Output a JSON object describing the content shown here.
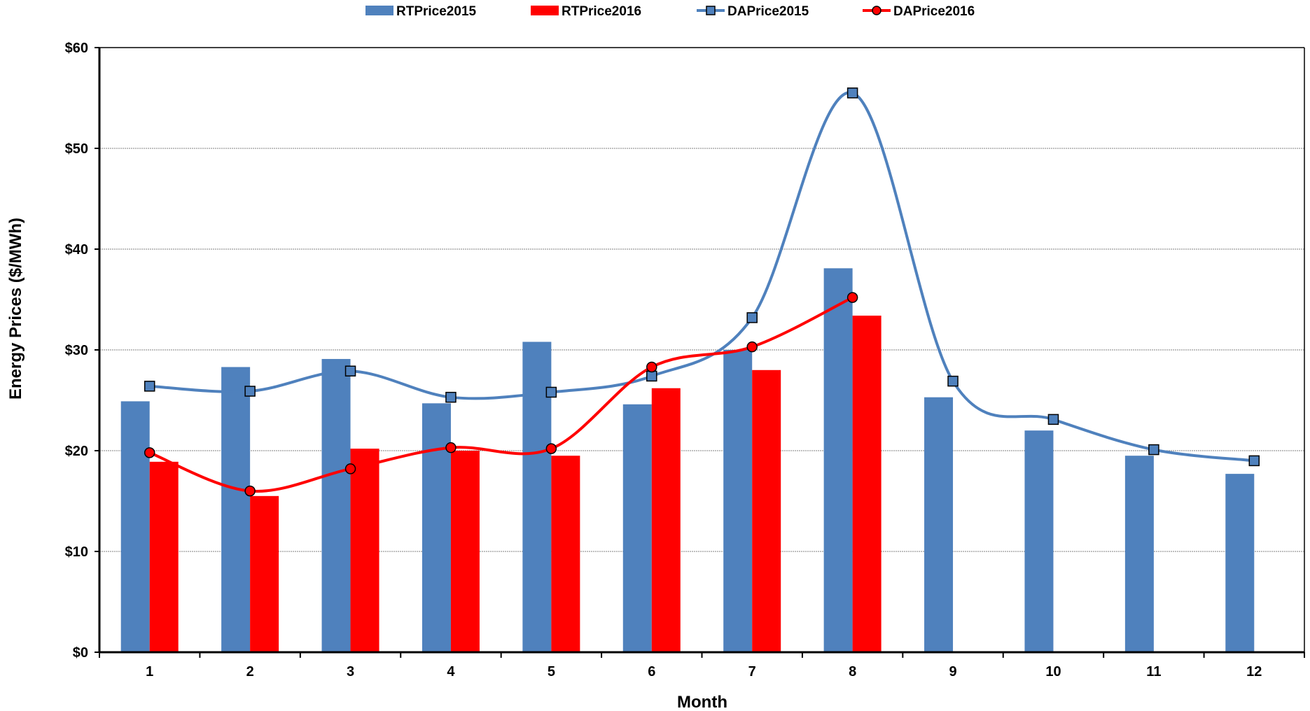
{
  "chart_data": {
    "type": "bar",
    "title": "",
    "xlabel": "Month",
    "ylabel": "Energy Prices ($/MWh)",
    "ylim": [
      0,
      60
    ],
    "y_ticks": [
      0,
      10,
      20,
      30,
      40,
      50,
      60
    ],
    "y_tick_labels": [
      "$0",
      "$10",
      "$20",
      "$30",
      "$40",
      "$50",
      "$60"
    ],
    "grid": "horizontal dotted",
    "legend_placement": "top",
    "categories": [
      "1",
      "2",
      "3",
      "4",
      "5",
      "6",
      "7",
      "8",
      "9",
      "10",
      "11",
      "12"
    ],
    "series": [
      {
        "name": "RTPrice2015",
        "type": "bar",
        "color": "#4F81BD",
        "values": [
          24.9,
          28.3,
          29.1,
          24.7,
          30.8,
          24.6,
          30.0,
          38.1,
          25.3,
          22.0,
          19.5,
          17.7
        ]
      },
      {
        "name": "RTPrice2016",
        "type": "bar",
        "color": "#FF0000",
        "values": [
          18.9,
          15.5,
          20.2,
          20.0,
          19.5,
          26.2,
          28.0,
          33.4,
          null,
          null,
          null,
          null
        ]
      },
      {
        "name": "DAPrice2015",
        "type": "line",
        "marker": "square",
        "color": "#4F81BD",
        "values": [
          26.4,
          25.9,
          27.9,
          25.3,
          25.8,
          27.4,
          33.2,
          55.5,
          26.9,
          23.1,
          20.1,
          19.0
        ]
      },
      {
        "name": "DAPrice2016",
        "type": "line",
        "marker": "circle",
        "color": "#FF0000",
        "values": [
          19.8,
          16.0,
          18.2,
          20.3,
          20.2,
          28.3,
          30.3,
          35.2,
          null,
          null,
          null,
          null
        ]
      }
    ]
  }
}
